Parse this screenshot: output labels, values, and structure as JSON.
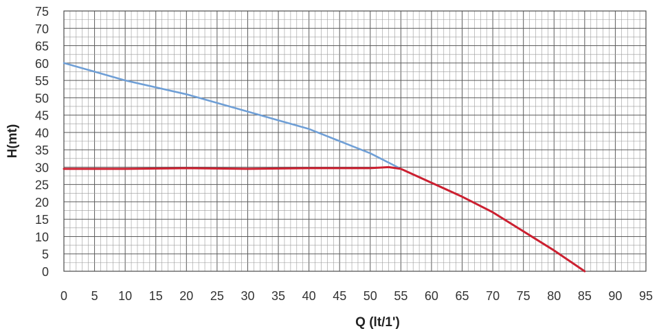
{
  "chart_data": {
    "type": "line",
    "xlabel": "Q (lt/1')",
    "ylabel": "H(mt)",
    "xlim": [
      0,
      95
    ],
    "ylim": [
      0,
      75
    ],
    "x_ticks": [
      0,
      5,
      10,
      15,
      20,
      25,
      30,
      35,
      40,
      45,
      50,
      55,
      60,
      65,
      70,
      75,
      80,
      85,
      90,
      95
    ],
    "y_ticks": [
      0,
      5,
      10,
      15,
      20,
      25,
      30,
      35,
      40,
      45,
      50,
      55,
      60,
      65,
      70,
      75
    ],
    "grid": true,
    "legend": "none",
    "series": [
      {
        "color": "#6f9fd6",
        "points": [
          [
            0,
            60
          ],
          [
            5,
            57.5
          ],
          [
            10,
            55
          ],
          [
            15,
            53
          ],
          [
            20,
            51
          ],
          [
            25,
            48.5
          ],
          [
            30,
            46
          ],
          [
            35,
            43.5
          ],
          [
            40,
            41
          ],
          [
            45,
            37.5
          ],
          [
            50,
            34
          ],
          [
            55,
            29.5
          ],
          [
            60,
            25.5
          ],
          [
            65,
            21.5
          ],
          [
            70,
            17
          ],
          [
            75,
            11.5
          ],
          [
            80,
            6
          ],
          [
            85,
            0
          ]
        ]
      },
      {
        "color": "#cc2030",
        "points": [
          [
            0,
            29.5
          ],
          [
            10,
            29.5
          ],
          [
            20,
            29.7
          ],
          [
            30,
            29.5
          ],
          [
            40,
            29.7
          ],
          [
            50,
            29.7
          ],
          [
            53,
            30
          ],
          [
            55,
            29.5
          ],
          [
            60,
            25.5
          ],
          [
            65,
            21.5
          ],
          [
            70,
            17
          ],
          [
            75,
            11.5
          ],
          [
            80,
            6
          ],
          [
            85,
            0
          ]
        ]
      }
    ]
  }
}
